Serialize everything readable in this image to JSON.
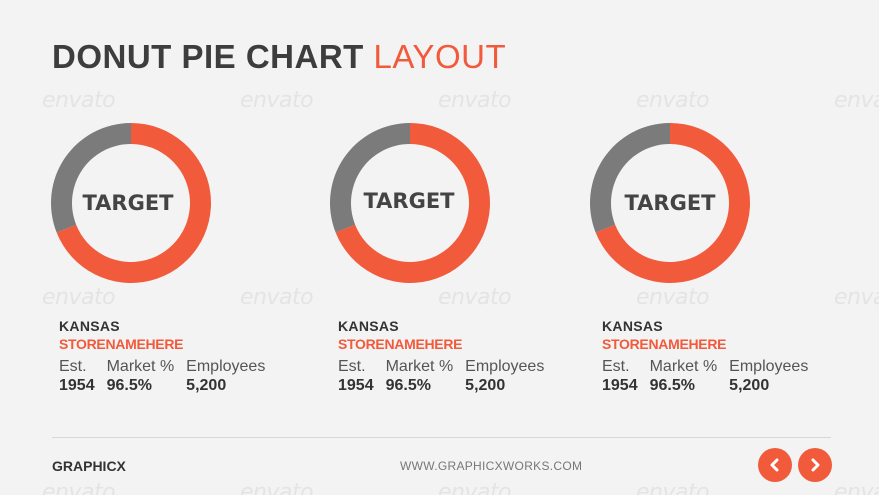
{
  "title": {
    "main": "DONUT PIE CHART",
    "accent": "LAYOUT"
  },
  "watermark_text": "envato",
  "colors": {
    "accent": "#f25a3c",
    "secondary": "#7b7b7b",
    "text": "#333333"
  },
  "chart_data": [
    {
      "type": "pie",
      "center_label": "TARGET",
      "slices": [
        {
          "value": 69,
          "color": "#f25a3c"
        },
        {
          "value": 31,
          "color": "#7b7b7b"
        }
      ]
    },
    {
      "type": "pie",
      "center_label": "TARGET",
      "slices": [
        {
          "value": 69,
          "color": "#f25a3c"
        },
        {
          "value": 31,
          "color": "#7b7b7b"
        }
      ]
    },
    {
      "type": "pie",
      "center_label": "TARGET",
      "slices": [
        {
          "value": 69,
          "color": "#f25a3c"
        },
        {
          "value": 31,
          "color": "#7b7b7b"
        }
      ]
    }
  ],
  "stores": [
    {
      "state": "KANSAS",
      "name": "STORENAMEHERE",
      "stats": [
        {
          "label": "Est.",
          "value": "1954"
        },
        {
          "label": "Market %",
          "value": "96.5%"
        },
        {
          "label": "Employees",
          "value": "5,200"
        }
      ]
    },
    {
      "state": "KANSAS",
      "name": "STORENAMEHERE",
      "stats": [
        {
          "label": "Est.",
          "value": "1954"
        },
        {
          "label": "Market %",
          "value": "96.5%"
        },
        {
          "label": "Employees",
          "value": "5,200"
        }
      ]
    },
    {
      "state": "KANSAS",
      "name": "STORENAMEHERE",
      "stats": [
        {
          "label": "Est.",
          "value": "1954"
        },
        {
          "label": "Market %",
          "value": "96.5%"
        },
        {
          "label": "Employees",
          "value": "5,200"
        }
      ]
    }
  ],
  "footer": {
    "brand": "GRAPHICX",
    "url": "WWW.GRAPHICXWORKS.COM"
  },
  "nav": {
    "prev_icon": "chevron-left-icon",
    "next_icon": "chevron-right-icon"
  }
}
